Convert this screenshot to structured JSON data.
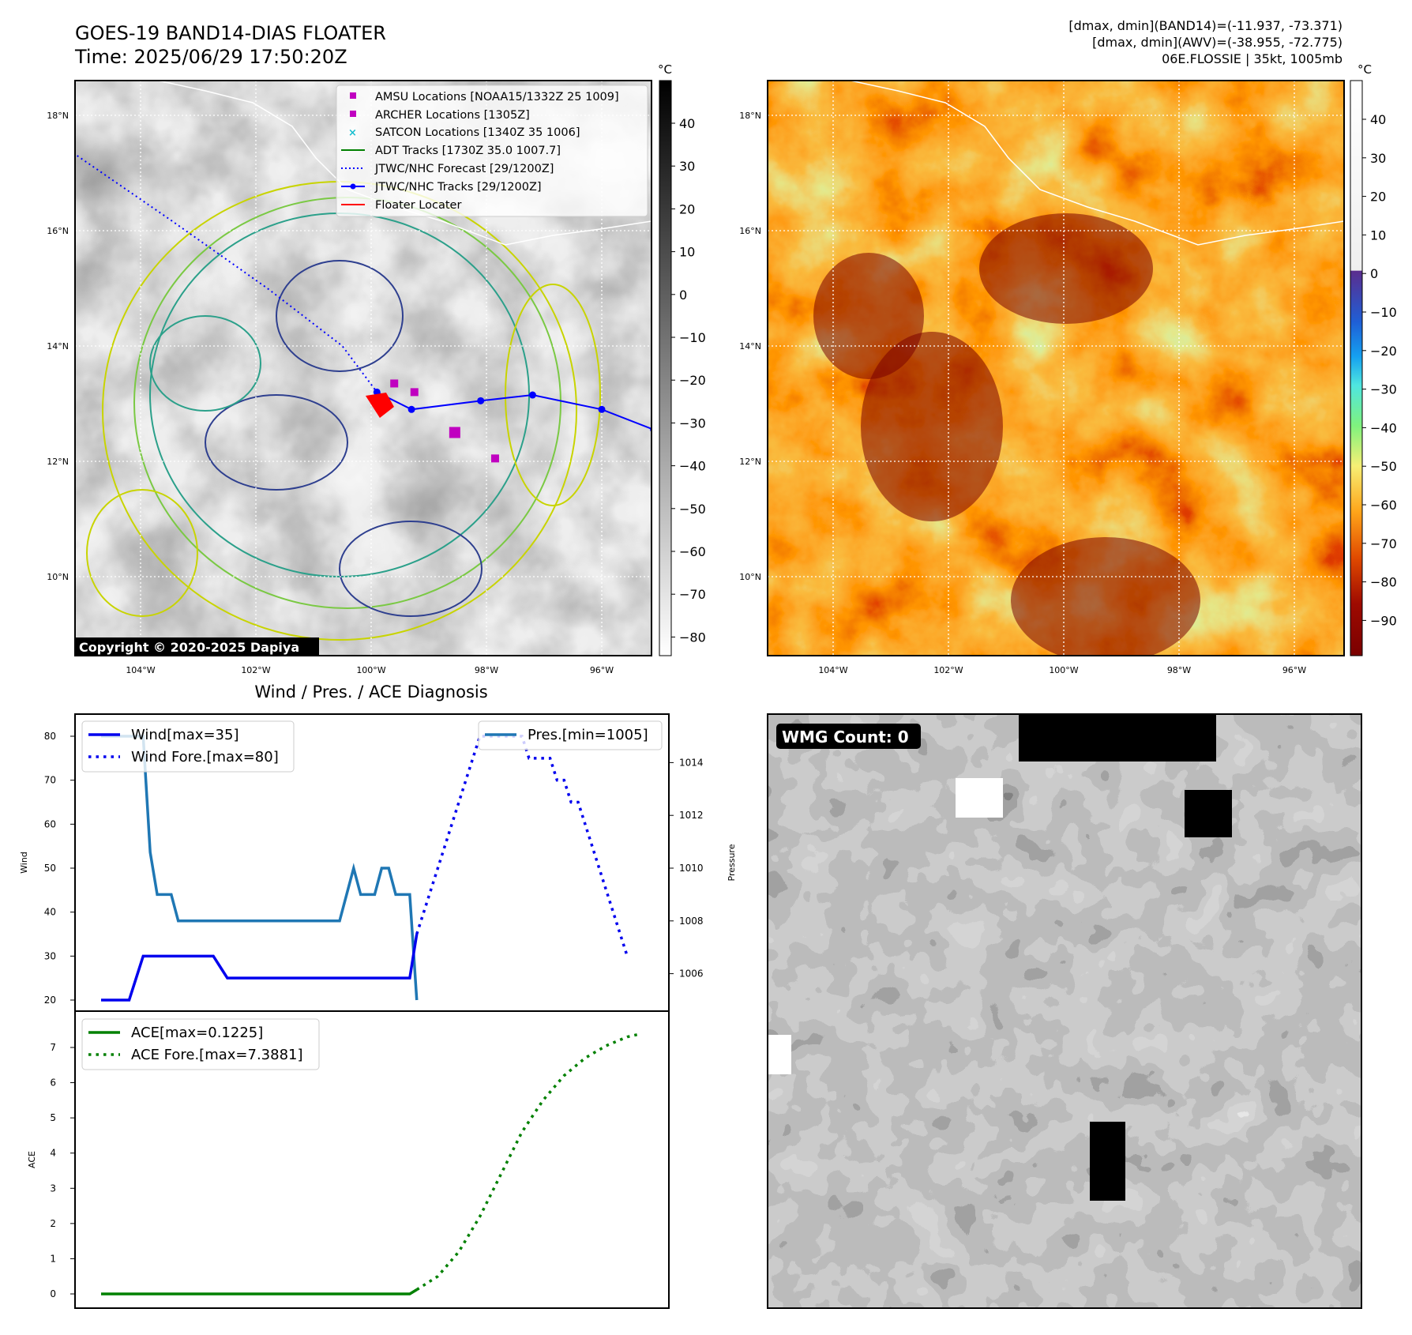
{
  "header": {
    "title_line1": "GOES-19 BAND14-DIAS FLOATER",
    "title_line2": "Time: 2025/06/29 17:50:20Z",
    "info_line1": "[dmax, dmin](BAND14)=(-11.937, -73.371)",
    "info_line2": "[dmax, dmin](AWV)=(-38.955, -72.775)",
    "info_line3": "06E.FLOSSIE | 35kt, 1005mb"
  },
  "colors": {
    "wind": "#0000ee",
    "wind_forecast": "#0000ee",
    "pressure": "#1f77b4",
    "ace": "#008000",
    "track": "#0000ff",
    "floater": "#ff0000",
    "amsu": "#c000c0",
    "archer": "#c000c0",
    "satcon": "#17becf"
  },
  "ir_map": {
    "lat_ticks": [
      "18°N",
      "16°N",
      "14°N",
      "12°N",
      "10°N"
    ],
    "lon_ticks": [
      "104°W",
      "102°W",
      "100°W",
      "98°W",
      "96°W"
    ],
    "colorbar_unit": "°C",
    "colorbar_ticks": [
      "40",
      "30",
      "20",
      "10",
      "0",
      "−10",
      "−20",
      "−30",
      "−40",
      "−50",
      "−60",
      "−70",
      "−80"
    ],
    "copyright": "Copyright © 2020-2025 Dapiya",
    "legend": [
      {
        "label": "AMSU Locations [NOAA15/1332Z 25 1009]",
        "icon": "square-marker-icon"
      },
      {
        "label": "ARCHER Locations [1305Z]",
        "icon": "square-marker-icon"
      },
      {
        "label": "SATCON Locations [1340Z 35 1006]",
        "icon": "x-marker-icon"
      },
      {
        "label": "ADT Tracks [1730Z 35.0 1007.7]",
        "icon": "solid-line-icon"
      },
      {
        "label": "JTWC/NHC Forecast [29/1200Z]",
        "icon": "dotted-line-icon"
      },
      {
        "label": "JTWC/NHC Tracks [29/1200Z]",
        "icon": "line-dot-icon"
      },
      {
        "label": "Floater Locater",
        "icon": "solid-line-icon"
      }
    ],
    "track_points": [
      {
        "lon": -99.9,
        "lat": 13.2
      },
      {
        "lon": -99.3,
        "lat": 12.9
      },
      {
        "lon": -98.1,
        "lat": 13.05
      },
      {
        "lon": -97.2,
        "lat": 13.15
      },
      {
        "lon": -96.0,
        "lat": 12.9
      },
      {
        "lon": -95.1,
        "lat": 12.55
      }
    ],
    "forecast_track": [
      {
        "lon": -105.1,
        "lat": 17.3
      },
      {
        "lon": -103.5,
        "lat": 16.2
      },
      {
        "lon": -101.8,
        "lat": 15.0
      },
      {
        "lon": -100.5,
        "lat": 14.0
      },
      {
        "lon": -99.9,
        "lat": 13.2
      }
    ],
    "amsu_location": {
      "lon": -98.55,
      "lat": 12.5
    },
    "archer_locations": [
      {
        "lon": -99.6,
        "lat": 13.35
      },
      {
        "lon": -99.25,
        "lat": 13.2
      },
      {
        "lon": -97.85,
        "lat": 12.05
      }
    ],
    "floater_location": {
      "lon": -99.85,
      "lat": 13.0
    }
  },
  "awv_map": {
    "lat_ticks": [
      "18°N",
      "16°N",
      "14°N",
      "12°N",
      "10°N"
    ],
    "lon_ticks": [
      "104°W",
      "102°W",
      "100°W",
      "98°W",
      "96°W"
    ],
    "colorbar_unit": "°C",
    "colorbar_ticks": [
      "40",
      "30",
      "20",
      "10",
      "0",
      "−10",
      "−20",
      "−30",
      "−40",
      "−50",
      "−60",
      "−70",
      "−80",
      "−90"
    ]
  },
  "wmg_panel": {
    "label": "WMG Count: 0"
  },
  "diagnosis_title": "Wind / Pres. / ACE Diagnosis",
  "chart_data": [
    {
      "type": "line",
      "title": "Wind / Pres. / ACE Diagnosis",
      "ylabel": "Wind",
      "y2label": "Pressure",
      "ylim": [
        18.5,
        81.5
      ],
      "y2lim": [
        1004.5,
        1015.3
      ],
      "yticks": [
        "20",
        "30",
        "40",
        "50",
        "60",
        "70",
        "80"
      ],
      "y2ticks": [
        "1006",
        "1008",
        "1010",
        "1012",
        "1014"
      ],
      "x": [
        0,
        1,
        2,
        3,
        4,
        5,
        6,
        7,
        8,
        9,
        10,
        11,
        12,
        13,
        14,
        15,
        16,
        17,
        18,
        19,
        20,
        21,
        22,
        23,
        24,
        25,
        26,
        27,
        28,
        29,
        30,
        31,
        32,
        33,
        34,
        35,
        36,
        37,
        38,
        39,
        40,
        41,
        42,
        43,
        44,
        45,
        46,
        47,
        48,
        49,
        50,
        51,
        52,
        53,
        54,
        55,
        56,
        57,
        58,
        59,
        60,
        61,
        62,
        63,
        64,
        65,
        66,
        67,
        68,
        69,
        70,
        71,
        72,
        73,
        74,
        75,
        76,
        77
      ],
      "series": [
        {
          "name": "Wind[max=35]",
          "axis": "left",
          "style": "solid",
          "values": [
            20,
            20,
            20,
            20,
            20,
            25,
            30,
            30,
            30,
            30,
            30,
            30,
            30,
            30,
            30,
            30,
            30,
            27.5,
            25,
            25,
            25,
            25,
            25,
            25,
            25,
            25,
            25,
            25,
            25,
            25,
            25,
            25,
            25,
            25,
            25,
            25,
            25,
            25,
            25,
            25,
            25,
            25,
            25,
            25,
            25,
            35,
            null,
            null,
            null,
            null,
            null,
            null,
            null,
            null,
            null,
            null,
            null,
            null,
            null,
            null,
            null,
            null,
            null,
            null,
            null,
            null,
            null,
            null,
            null,
            null,
            null,
            null,
            null,
            null,
            null,
            null,
            null,
            null
          ]
        },
        {
          "name": "Wind Fore.[max=80]",
          "axis": "left",
          "style": "dotted",
          "values": [
            null,
            null,
            null,
            null,
            null,
            null,
            null,
            null,
            null,
            null,
            null,
            null,
            null,
            null,
            null,
            null,
            null,
            null,
            null,
            null,
            null,
            null,
            null,
            null,
            null,
            null,
            null,
            null,
            null,
            null,
            null,
            null,
            null,
            null,
            null,
            null,
            null,
            null,
            null,
            null,
            null,
            null,
            null,
            null,
            null,
            35,
            40,
            45,
            50,
            55,
            60,
            65,
            70,
            75,
            80,
            80,
            80,
            80,
            80,
            80,
            80,
            75,
            75,
            75,
            75,
            70,
            70,
            65,
            65,
            60,
            55,
            50,
            45,
            40,
            35,
            30,
            null,
            null
          ]
        },
        {
          "name": "Pres.[min=1005]",
          "axis": "right",
          "style": "solid",
          "values": [
            1015,
            1015,
            1015,
            1015,
            1015,
            1015,
            1015,
            1010.6,
            1009,
            1009,
            1009,
            1008,
            1008,
            1008,
            1008,
            1008,
            1008,
            1008,
            1008,
            1008,
            1008,
            1008,
            1008,
            1008,
            1008,
            1008,
            1008,
            1008,
            1008,
            1008,
            1008,
            1008,
            1008,
            1008,
            1008,
            1009,
            1010,
            1009,
            1009,
            1009,
            1010,
            1010,
            1009,
            1009,
            1009,
            1005,
            null,
            null,
            null,
            null,
            null,
            null,
            null,
            null,
            null,
            null,
            null,
            null,
            null,
            null,
            null,
            null,
            null,
            null,
            null,
            null,
            null,
            null,
            null,
            null,
            null,
            null,
            null,
            null,
            null,
            null,
            null,
            null
          ]
        }
      ]
    },
    {
      "type": "line",
      "ylabel": "ACE",
      "ylim": [
        -0.2,
        7.6
      ],
      "yticks": [
        "0",
        "1",
        "2",
        "3",
        "4",
        "5",
        "6",
        "7"
      ],
      "x": [
        0,
        4,
        8,
        12,
        16,
        20,
        24,
        28,
        32,
        36,
        40,
        44,
        45,
        48,
        51,
        54,
        57,
        60,
        63,
        66,
        69,
        72,
        75,
        77
      ],
      "series": [
        {
          "name": "ACE[max=0.1225]",
          "style": "solid",
          "values": [
            0,
            0,
            0,
            0,
            0,
            0,
            0,
            0,
            0,
            0,
            0,
            0,
            0.12,
            null,
            null,
            null,
            null,
            null,
            null,
            null,
            null,
            null,
            null,
            null
          ]
        },
        {
          "name": "ACE Fore.[max=7.3881]",
          "style": "dotted",
          "values": [
            null,
            null,
            null,
            null,
            null,
            null,
            null,
            null,
            null,
            null,
            null,
            null,
            0.12,
            0.5,
            1.2,
            2.2,
            3.4,
            4.6,
            5.5,
            6.2,
            6.7,
            7.05,
            7.3,
            7.39
          ]
        }
      ]
    }
  ]
}
